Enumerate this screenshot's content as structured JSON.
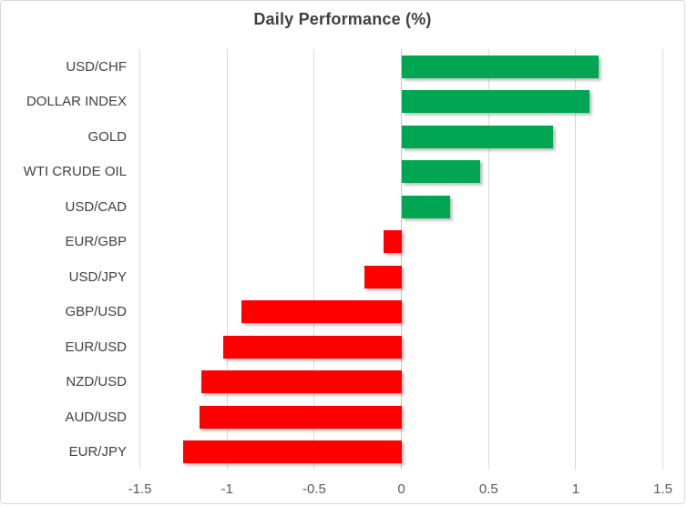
{
  "chart_data": {
    "type": "bar",
    "orientation": "horizontal",
    "title": "Daily Performance (%)",
    "categories": [
      "USD/CHF",
      "DOLLAR INDEX",
      "GOLD",
      "WTI CRUDE OIL",
      "USD/CAD",
      "EUR/GBP",
      "USD/JPY",
      "GBP/USD",
      "EUR/USD",
      "NZD/USD",
      "AUD/USD",
      "EUR/JPY"
    ],
    "values": [
      1.13,
      1.08,
      0.87,
      0.45,
      0.28,
      -0.1,
      -0.21,
      -0.92,
      -1.02,
      -1.15,
      -1.16,
      -1.25
    ],
    "xlabel": "",
    "ylabel": "",
    "xlim": [
      -1.5,
      1.5
    ],
    "x_ticks": [
      -1.5,
      -1,
      -0.5,
      0,
      0.5,
      1,
      1.5
    ],
    "x_tick_labels": [
      "-1.5",
      "-1",
      "-0.5",
      "0",
      "0.5",
      "1",
      "1.5"
    ],
    "grid": "vertical",
    "legend": "none",
    "colors": {
      "positive_bar": "#00A651",
      "negative_bar": "#FF0000",
      "gridline": "#D9D9D9",
      "zero_line": "#C6C6C6",
      "title_text": "#404040",
      "category_text": "#404040",
      "tick_text": "#595959",
      "frame_border": "#D8D8D8",
      "background": "#FFFFFF"
    }
  }
}
